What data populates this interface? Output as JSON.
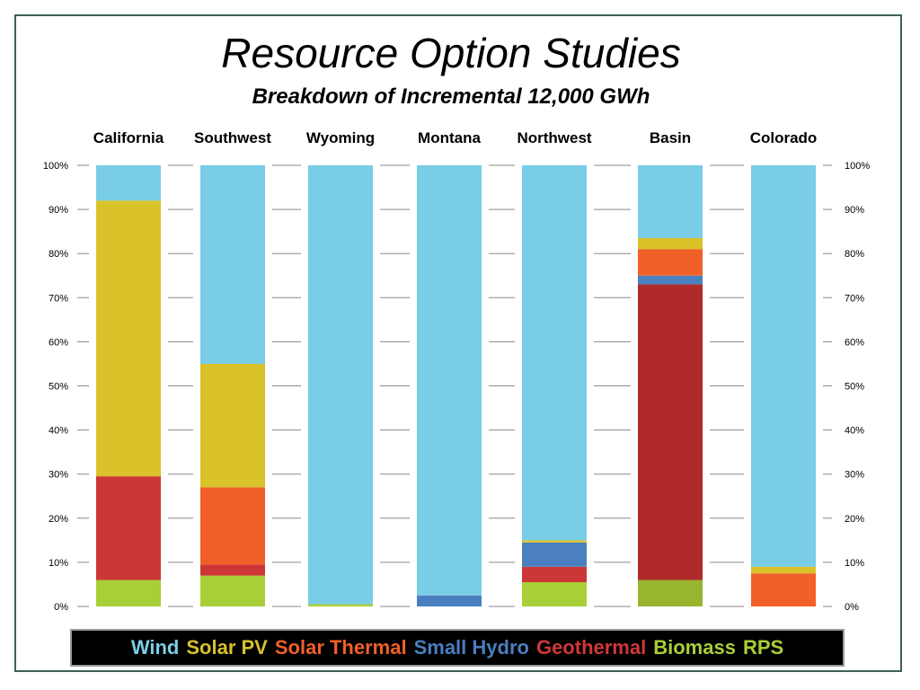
{
  "header": {
    "title": "Resource Option Studies",
    "subtitle": "Breakdown of Incremental 12,000 GWh"
  },
  "legend": {
    "items": [
      {
        "label": "Wind",
        "color": "#7acde6"
      },
      {
        "label": "Solar PV",
        "color": "#d9c22a"
      },
      {
        "label": "Solar Thermal",
        "color": "#f06028"
      },
      {
        "label": "Small Hydro",
        "color": "#4a7fc0"
      },
      {
        "label": "Geothermal",
        "color": "#d03838"
      },
      {
        "label": "Biomass",
        "color": "#a9cf38"
      },
      {
        "label": "RPS",
        "color": "#a9cf38"
      }
    ]
  },
  "chart_data": {
    "type": "bar",
    "stacked": true,
    "title": "Resource Option Studies",
    "subtitle": "Breakdown of Incremental 12,000 GWh",
    "categories": [
      "California",
      "Southwest",
      "Wyoming",
      "Montana",
      "Northwest",
      "Basin",
      "Colorado"
    ],
    "ylim": [
      0,
      100
    ],
    "yticks": [
      "0%",
      "10%",
      "20%",
      "30%",
      "40%",
      "50%",
      "60%",
      "70%",
      "80%",
      "90%",
      "100%"
    ],
    "grid": true,
    "legend_position": "bottom",
    "series": [
      {
        "name": "Biomass",
        "color": "#a9cf38",
        "values": [
          6,
          7,
          0.5,
          0,
          5.5,
          6,
          0
        ]
      },
      {
        "name": "Geothermal",
        "color": "#cc3636",
        "values": [
          23.5,
          2.5,
          0,
          0,
          3.5,
          67,
          0
        ]
      },
      {
        "name": "Small Hydro",
        "color": "#4a7fc0",
        "values": [
          0,
          0,
          0,
          2.5,
          5.5,
          2,
          0
        ]
      },
      {
        "name": "Solar Thermal",
        "color": "#f06028",
        "values": [
          0,
          17.5,
          0,
          0,
          0,
          6,
          7.5
        ]
      },
      {
        "name": "Solar PV",
        "color": "#d9c22a",
        "values": [
          62.5,
          28,
          0,
          0,
          0.5,
          2.5,
          1.5
        ]
      },
      {
        "name": "Wind",
        "color": "#7acde6",
        "values": [
          8,
          45,
          99.5,
          97.5,
          85,
          16.5,
          91
        ]
      }
    ],
    "segment_color_overrides": {
      "Basin": {
        "Biomass": "#97b52e",
        "Geothermal": "#b02a2a"
      }
    }
  }
}
